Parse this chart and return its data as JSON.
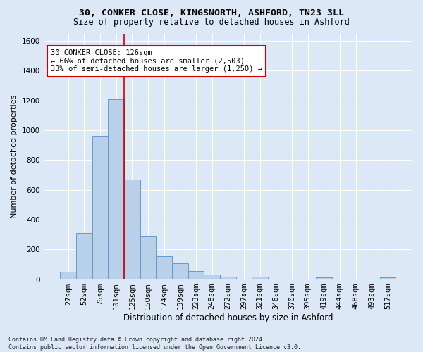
{
  "title1": "30, CONKER CLOSE, KINGSNORTH, ASHFORD, TN23 3LL",
  "title2": "Size of property relative to detached houses in Ashford",
  "xlabel": "Distribution of detached houses by size in Ashford",
  "ylabel": "Number of detached properties",
  "footnote": "Contains HM Land Registry data © Crown copyright and database right 2024.\nContains public sector information licensed under the Open Government Licence v3.0.",
  "bar_labels": [
    "27sqm",
    "52sqm",
    "76sqm",
    "101sqm",
    "125sqm",
    "150sqm",
    "174sqm",
    "199sqm",
    "223sqm",
    "248sqm",
    "272sqm",
    "297sqm",
    "321sqm",
    "346sqm",
    "370sqm",
    "395sqm",
    "419sqm",
    "444sqm",
    "468sqm",
    "493sqm",
    "517sqm"
  ],
  "bar_values": [
    50,
    310,
    960,
    1210,
    670,
    290,
    155,
    105,
    55,
    30,
    15,
    5,
    15,
    5,
    0,
    0,
    10,
    0,
    0,
    0,
    10
  ],
  "bar_color": "#b8d0ea",
  "bar_edge_color": "#6699cc",
  "vline_index": 4,
  "vline_color": "#cc0000",
  "annotation_line1": "30 CONKER CLOSE: 126sqm",
  "annotation_line2": "← 66% of detached houses are smaller (2,503)",
  "annotation_line3": "33% of semi-detached houses are larger (1,250) →",
  "annotation_box_color": "#ffffff",
  "annotation_box_edge": "#cc0000",
  "ylim": [
    0,
    1650
  ],
  "yticks": [
    0,
    200,
    400,
    600,
    800,
    1000,
    1200,
    1400,
    1600
  ],
  "bg_color": "#dce8f5",
  "grid_color": "#ffffff",
  "title1_fontsize": 9.5,
  "title2_fontsize": 8.5,
  "tick_fontsize": 7.5,
  "ylabel_fontsize": 8,
  "xlabel_fontsize": 8.5,
  "footnote_fontsize": 6,
  "annotation_fontsize": 7.5
}
